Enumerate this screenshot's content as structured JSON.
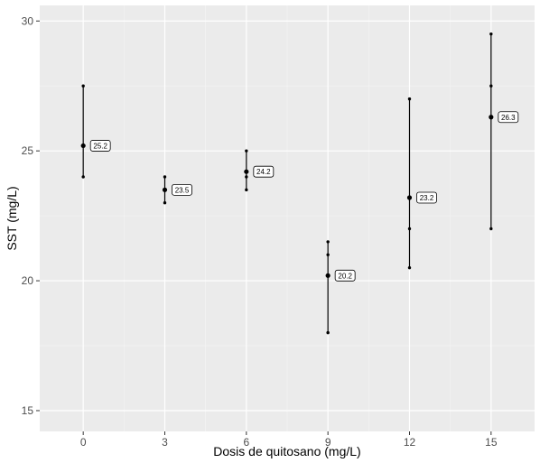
{
  "chart_data": {
    "type": "scatter",
    "title": "",
    "xlabel": "Dosis de quitosano (mg/L)",
    "ylabel": "SST (mg/L)",
    "x_ticks": [
      0,
      3,
      6,
      9,
      12,
      15
    ],
    "y_ticks": [
      15,
      20,
      25,
      30
    ],
    "xlim": [
      -1.6,
      16.6
    ],
    "ylim": [
      14.2,
      30.6
    ],
    "grid": true,
    "legend": "none",
    "groups": [
      {
        "x": 0,
        "points": [
          24.0,
          25.2,
          27.5
        ],
        "min": 24.0,
        "max": 27.5,
        "mean": 25.2,
        "mean_label": "25.2"
      },
      {
        "x": 3,
        "points": [
          23.0,
          23.5,
          24.0
        ],
        "min": 23.0,
        "max": 24.0,
        "mean": 23.5,
        "mean_label": "23.5"
      },
      {
        "x": 6,
        "points": [
          23.5,
          24.0,
          24.2,
          25.0
        ],
        "min": 23.5,
        "max": 25.0,
        "mean": 24.2,
        "mean_label": "24.2"
      },
      {
        "x": 9,
        "points": [
          18.0,
          20.2,
          21.0,
          21.5
        ],
        "min": 18.0,
        "max": 21.5,
        "mean": 20.2,
        "mean_label": "20.2"
      },
      {
        "x": 12,
        "points": [
          20.5,
          22.0,
          23.2,
          27.0
        ],
        "min": 20.5,
        "max": 27.0,
        "mean": 23.2,
        "mean_label": "23.2"
      },
      {
        "x": 15,
        "points": [
          22.0,
          26.3,
          27.5,
          29.5
        ],
        "min": 22.0,
        "max": 29.5,
        "mean": 26.3,
        "mean_label": "26.3"
      }
    ],
    "colors": {
      "panel": "#EBEBEB",
      "grid_major": "#FFFFFF",
      "grid_minor": "#F5F5F5",
      "marks": "#000000",
      "tick_text": "#4D4D4D"
    }
  }
}
